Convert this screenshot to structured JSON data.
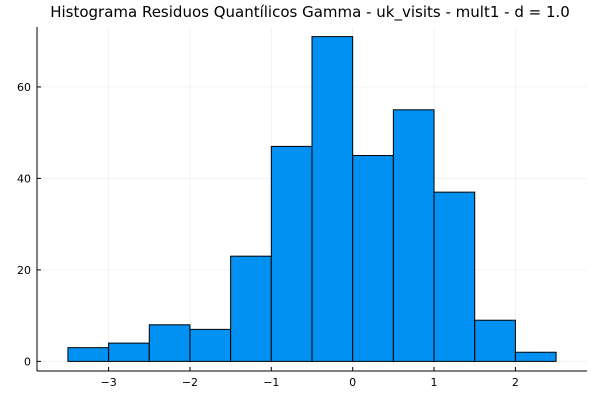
{
  "chart_data": {
    "type": "bar",
    "title": "Histograma Residuos Quantílicos Gamma - uk_visits - mult1 - d = 1.0",
    "xlabel": "",
    "ylabel": "",
    "bin_edges": [
      -3.5,
      -3.0,
      -2.5,
      -2.0,
      -1.5,
      -1.0,
      -0.5,
      0.0,
      0.5,
      1.0,
      1.5,
      2.0,
      2.5
    ],
    "values": [
      3,
      4,
      8,
      7,
      23,
      47,
      71,
      45,
      55,
      37,
      9,
      2
    ],
    "xlim": [
      -3.88,
      2.88
    ],
    "ylim": [
      -2.1,
      73.1
    ],
    "xticks": [
      -3,
      -2,
      -1,
      0,
      1,
      2
    ],
    "xtick_labels": [
      "−3",
      "−2",
      "−1",
      "0",
      "1",
      "2"
    ],
    "yticks": [
      0,
      20,
      40,
      60
    ],
    "ytick_labels": [
      "0",
      "20",
      "40",
      "60"
    ],
    "grid": true,
    "legend": "none",
    "bar_color": "#0091f2",
    "bar_edge_color": "#000000"
  }
}
